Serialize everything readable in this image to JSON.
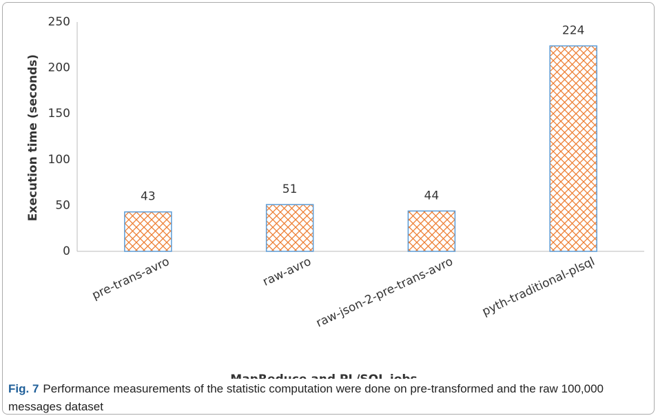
{
  "chart_data": {
    "type": "bar",
    "y_label": "Execution time (seconds)",
    "x_label": "MapReduce and PL/SQL jobs",
    "categories": [
      "pre-trans-avro",
      "raw-avro",
      "raw-json-2-pre-trans-avro",
      "pyth-traditional-plsql"
    ],
    "values": [
      43,
      51,
      44,
      224
    ],
    "color": "#ed7d31",
    "edge_color": "#5b9bd5",
    "ylim": [
      0,
      250
    ],
    "yticks": [
      0,
      50,
      100,
      150,
      200,
      250
    ],
    "grid": false,
    "caption_label": "Fig. 7",
    "caption": "Performance measurements of the statistic computation were done on pre-transformed and the raw 100,000 messages dataset"
  }
}
